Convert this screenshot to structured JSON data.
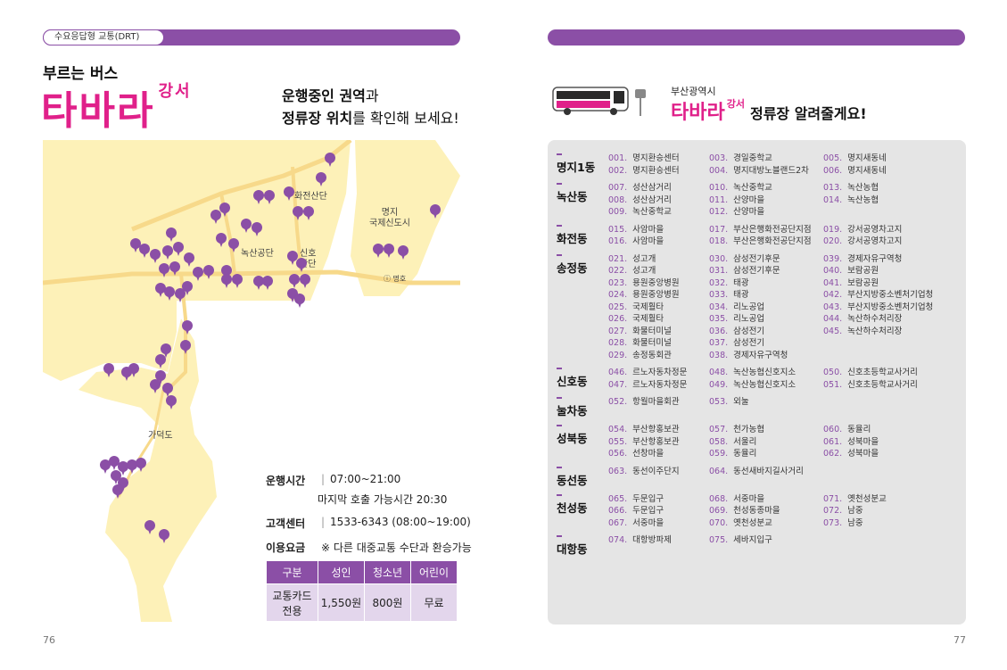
{
  "left": {
    "header_tag": "수요응답형 교통(DRT)",
    "kicker": "부르는 버스",
    "logo": "타바라",
    "logo_sub": "강서",
    "tagline_1a": "운행중인 권역",
    "tagline_1b": "과",
    "tagline_2a": "정류장 위치",
    "tagline_2b": "를 확인해 보세요!",
    "map_labels": {
      "hwajeon": "화전산단",
      "myeongji_1": "명지",
      "myeongji_2": "국제신도시",
      "noksan": "녹산공단",
      "sinho_1": "신호",
      "sinho_2": "산단",
      "gadeok": "가덕도",
      "ic": "명호"
    },
    "info": {
      "hours_key": "운행시간",
      "hours_val": "07:00~21:00",
      "hours_sub": "마지막 호출 가능시간 20:30",
      "call_key": "고객센터",
      "call_val": "1533-6343 (08:00~19:00)",
      "fare_key": "이용요금",
      "fare_val": "※ 다른 대중교통 수단과 환승가능"
    },
    "fare_table": {
      "headers": [
        "구분",
        "성인",
        "청소년",
        "어린이"
      ],
      "row_label_1": "교통카드",
      "row_label_2": "전용",
      "values": [
        "1,550원",
        "800원",
        "무료"
      ]
    },
    "page_no": "76"
  },
  "right": {
    "sub": "부산광역시",
    "title_logo": "타바라",
    "title_logo_sub": "강서",
    "title_rest": "정류장 알려줄게요!",
    "page_no": "77",
    "dongs": [
      {
        "name": "명지1동",
        "cols": [
          [
            [
              "001.",
              "명지환승센터"
            ],
            [
              "002.",
              "명지환승센터"
            ]
          ],
          [
            [
              "003.",
              "경일중학교"
            ],
            [
              "004.",
              "명지대방노블랜드2차"
            ]
          ],
          [
            [
              "005.",
              "명지새동네"
            ],
            [
              "006.",
              "명지새동네"
            ]
          ]
        ]
      },
      {
        "name": "녹산동",
        "cols": [
          [
            [
              "007.",
              "성산삼거리"
            ],
            [
              "008.",
              "성산삼거리"
            ],
            [
              "009.",
              "녹산중학교"
            ]
          ],
          [
            [
              "010.",
              "녹산중학교"
            ],
            [
              "011.",
              "산양마을"
            ],
            [
              "012.",
              "산양마을"
            ]
          ],
          [
            [
              "013.",
              "녹산농협"
            ],
            [
              "014.",
              "녹산농협"
            ]
          ]
        ]
      },
      {
        "name": "화전동",
        "cols": [
          [
            [
              "015.",
              "사암마을"
            ],
            [
              "016.",
              "사암마을"
            ]
          ],
          [
            [
              "017.",
              "부산은행화전공단지점"
            ],
            [
              "018.",
              "부산은행화전공단지점"
            ]
          ],
          [
            [
              "019.",
              "강서공영차고지"
            ],
            [
              "020.",
              "강서공영차고지"
            ]
          ]
        ]
      },
      {
        "name": "송정동",
        "cols": [
          [
            [
              "021.",
              "성고개"
            ],
            [
              "022.",
              "성고개"
            ],
            [
              "023.",
              "용원중앙병원"
            ],
            [
              "024.",
              "용원중앙병원"
            ],
            [
              "025.",
              "국제훨타"
            ],
            [
              "026.",
              "국제훨타"
            ],
            [
              "027.",
              "화물터미널"
            ],
            [
              "028.",
              "화물터미널"
            ],
            [
              "029.",
              "송정동회관"
            ]
          ],
          [
            [
              "030.",
              "삼성전기후문"
            ],
            [
              "031.",
              "삼성전기후문"
            ],
            [
              "032.",
              "태광"
            ],
            [
              "033.",
              "태광"
            ],
            [
              "034.",
              "리노공업"
            ],
            [
              "035.",
              "리노공업"
            ],
            [
              "036.",
              "삼성전기"
            ],
            [
              "037.",
              "삼성전기"
            ],
            [
              "038.",
              "경제자유구역청"
            ]
          ],
          [
            [
              "039.",
              "경제자유구역청"
            ],
            [
              "040.",
              "보람공원"
            ],
            [
              "041.",
              "보람공원"
            ],
            [
              "042.",
              "부산지방중소벤처기업청"
            ],
            [
              "043.",
              "부산지방중소벤처기업청"
            ],
            [
              "044.",
              "녹산하수처리장"
            ],
            [
              "045.",
              "녹산하수처리장"
            ]
          ]
        ]
      },
      {
        "name": "신호동",
        "cols": [
          [
            [
              "046.",
              "르노자동차정문"
            ],
            [
              "047.",
              "르노자동차정문"
            ]
          ],
          [
            [
              "048.",
              "녹산농협신호지소"
            ],
            [
              "049.",
              "녹산농협신호지소"
            ]
          ],
          [
            [
              "050.",
              "신호초등학교사거리"
            ],
            [
              "051.",
              "신호초등학교사거리"
            ]
          ]
        ]
      },
      {
        "name": "눌차동",
        "cols": [
          [
            [
              "052.",
              "항월마을회관"
            ]
          ],
          [
            [
              "053.",
              "외눌"
            ]
          ],
          []
        ]
      },
      {
        "name": "성북동",
        "cols": [
          [
            [
              "054.",
              "부산항홍보관"
            ],
            [
              "055.",
              "부산항홍보관"
            ],
            [
              "056.",
              "선창마을"
            ]
          ],
          [
            [
              "057.",
              "천가농협"
            ],
            [
              "058.",
              "서울리"
            ],
            [
              "059.",
              "동율리"
            ]
          ],
          [
            [
              "060.",
              "동율리"
            ],
            [
              "061.",
              "성북마을"
            ],
            [
              "062.",
              "성북마을"
            ]
          ]
        ]
      },
      {
        "name": "동선동",
        "cols": [
          [
            [
              "063.",
              "동선이주단지"
            ]
          ],
          [
            [
              "064.",
              "동선새바지길사거리"
            ]
          ],
          []
        ]
      },
      {
        "name": "천성동",
        "cols": [
          [
            [
              "065.",
              "두문입구"
            ],
            [
              "066.",
              "두문입구"
            ],
            [
              "067.",
              "서중마을"
            ]
          ],
          [
            [
              "068.",
              "서중마을"
            ],
            [
              "069.",
              "천성동종마을"
            ],
            [
              "070.",
              "옛천성분교"
            ]
          ],
          [
            [
              "071.",
              "옛천성분교"
            ],
            [
              "072.",
              "남중"
            ],
            [
              "073.",
              "남중"
            ]
          ]
        ]
      },
      {
        "name": "대항동",
        "cols": [
          [
            [
              "074.",
              "대항방파제"
            ]
          ],
          [
            [
              "075.",
              "세바지입구"
            ]
          ],
          []
        ]
      }
    ]
  },
  "colors": {
    "accent": "#8b4fa6",
    "brand": "#e0208a",
    "map_land": "#fdf1b8",
    "map_road": "#f7d98a"
  }
}
